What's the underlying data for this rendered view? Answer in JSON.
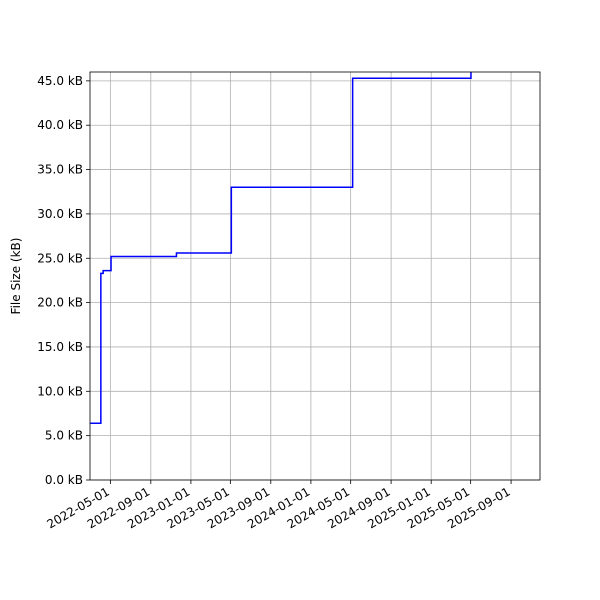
{
  "chart_data": {
    "type": "line",
    "title": "",
    "xlabel": "",
    "ylabel": "File Size (kB)",
    "x_type": "date",
    "xlim": [
      "2022-02-28",
      "2025-11-28"
    ],
    "ylim": [
      0,
      46
    ],
    "y_ticks": [
      0,
      5,
      10,
      15,
      20,
      25,
      30,
      35,
      40,
      45
    ],
    "y_tick_labels": [
      "0.0 kB",
      "5.0 kB",
      "10.0 kB",
      "15.0 kB",
      "20.0 kB",
      "25.0 kB",
      "30.0 kB",
      "35.0 kB",
      "40.0 kB",
      "45.0 kB"
    ],
    "x_ticks": [
      "2022-05-01",
      "2022-09-01",
      "2023-01-01",
      "2023-05-01",
      "2023-09-01",
      "2024-01-01",
      "2024-05-01",
      "2024-09-01",
      "2025-01-01",
      "2025-05-01",
      "2025-09-01"
    ],
    "x_tick_labels": [
      "2022-05-01",
      "2022-09-01",
      "2023-01-01",
      "2023-05-01",
      "2023-09-01",
      "2024-01-01",
      "2024-05-01",
      "2024-09-01",
      "2025-01-01",
      "2025-05-01",
      "2025-09-01"
    ],
    "grid": true,
    "legend": "none",
    "series": [
      {
        "color": "#0000ff",
        "drawstyle": "steps-post",
        "x": [
          "2022-03-01",
          "2022-04-02",
          "2022-04-09",
          "2022-04-16",
          "2022-05-03",
          "2022-11-18",
          "2023-05-04",
          "2024-05-07",
          "2025-05-02"
        ],
        "y": [
          6.4,
          23.3,
          23.6,
          23.6,
          25.2,
          25.6,
          33.0,
          45.3,
          46.0
        ]
      }
    ]
  }
}
